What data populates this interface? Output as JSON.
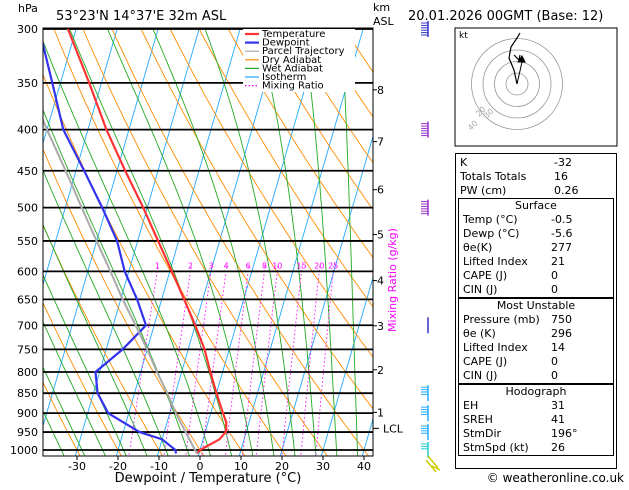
{
  "header": {
    "units_hpa": "hPa",
    "location": "53°23'N  14°37'E  32m  ASL",
    "units_km": "km",
    "units_asl": "ASL",
    "datetime": "20.01.2026  00GMT  (Base: 12)"
  },
  "chart_data": {
    "type": "skew-t log-p",
    "xlabel": "Dewpoint / Temperature (°C)",
    "ylabel_mixing": "Mixing Ratio (g/kg)",
    "pressure_levels": [
      300,
      350,
      400,
      450,
      500,
      550,
      600,
      650,
      700,
      750,
      800,
      850,
      900,
      950,
      1000
    ],
    "temperature_ticks": [
      -30,
      -20,
      -10,
      0,
      10,
      20,
      30,
      40
    ],
    "xlim": [
      -35,
      40
    ],
    "ylim": [
      1050,
      300
    ],
    "km_ticks": [
      {
        "label": "8",
        "p": 357
      },
      {
        "label": "7",
        "p": 414
      },
      {
        "label": "6",
        "p": 475
      },
      {
        "label": "5",
        "p": 540
      },
      {
        "label": "4",
        "p": 616
      },
      {
        "label": "3",
        "p": 701
      },
      {
        "label": "2",
        "p": 795
      },
      {
        "label": "1",
        "p": 898
      }
    ],
    "lcl": {
      "label": "LCL",
      "p": 940
    },
    "mixing_ratio_labels": [
      "1",
      "2",
      "3",
      "4",
      "6",
      "8",
      "10",
      "15",
      "20",
      "25"
    ],
    "mixing_ratio_values": [
      1,
      2,
      3,
      4,
      6,
      8,
      10,
      15,
      20,
      25
    ],
    "legend": [
      "Temperature",
      "Dewpoint",
      "Parcel Trajectory",
      "Dry Adiabat",
      "Wet Adiabat",
      "Isotherm",
      "Mixing Ratio"
    ],
    "series": [
      {
        "name": "Temperature",
        "color": "#ff3333",
        "points": [
          [
            1010,
            -0.5
          ],
          [
            1000,
            0
          ],
          [
            970,
            4
          ],
          [
            950,
            5
          ],
          [
            925,
            4.5
          ],
          [
            900,
            3
          ],
          [
            850,
            0
          ],
          [
            800,
            -3
          ],
          [
            750,
            -6
          ],
          [
            700,
            -10
          ],
          [
            650,
            -14.5
          ],
          [
            600,
            -19.5
          ],
          [
            550,
            -25
          ],
          [
            500,
            -31
          ],
          [
            450,
            -38
          ],
          [
            400,
            -45.5
          ],
          [
            350,
            -53
          ],
          [
            300,
            -62
          ]
        ]
      },
      {
        "name": "Dewpoint",
        "color": "#3333ee",
        "points": [
          [
            1010,
            -5.6
          ],
          [
            1000,
            -6
          ],
          [
            970,
            -10
          ],
          [
            950,
            -16
          ],
          [
            900,
            -25
          ],
          [
            850,
            -29
          ],
          [
            800,
            -31
          ],
          [
            750,
            -26
          ],
          [
            700,
            -22
          ],
          [
            650,
            -26
          ],
          [
            600,
            -31
          ],
          [
            550,
            -35
          ],
          [
            500,
            -41
          ],
          [
            450,
            -48
          ],
          [
            400,
            -56
          ],
          [
            350,
            -62
          ],
          [
            300,
            -69
          ]
        ]
      },
      {
        "name": "Parcel Trajectory",
        "color": "#aaaaaa",
        "points": [
          [
            1010,
            -0.5
          ],
          [
            940,
            -5.5
          ],
          [
            900,
            -8.5
          ],
          [
            850,
            -12
          ],
          [
            800,
            -16
          ],
          [
            750,
            -20
          ],
          [
            700,
            -24.5
          ],
          [
            650,
            -29.5
          ],
          [
            600,
            -34.5
          ],
          [
            550,
            -40
          ],
          [
            500,
            -46
          ],
          [
            450,
            -52.5
          ],
          [
            400,
            -60
          ],
          [
            350,
            -68
          ],
          [
            300,
            -76
          ]
        ]
      }
    ],
    "hodograph": {
      "rings_kt": [
        10,
        20,
        30,
        40
      ],
      "ring_labels": [
        "20",
        "30",
        "40"
      ],
      "unit": "kt"
    }
  },
  "indices": {
    "basic": [
      {
        "label": "K",
        "value": "-32"
      },
      {
        "label": "Totals Totals",
        "value": "16"
      },
      {
        "label": "PW (cm)",
        "value": "0.26"
      }
    ],
    "surface_title": "Surface",
    "surface": [
      {
        "label": "Temp (°C)",
        "value": "-0.5"
      },
      {
        "label": "Dewp (°C)",
        "value": "-5.6"
      },
      {
        "label": "θe(K)",
        "value": "277"
      },
      {
        "label": "Lifted Index",
        "value": "21"
      },
      {
        "label": "CAPE (J)",
        "value": "0"
      },
      {
        "label": "CIN (J)",
        "value": "0"
      }
    ],
    "unstable_title": "Most Unstable",
    "unstable": [
      {
        "label": "Pressure (mb)",
        "value": "750"
      },
      {
        "label": "θe (K)",
        "value": "296"
      },
      {
        "label": "Lifted Index",
        "value": "14"
      },
      {
        "label": "CAPE (J)",
        "value": "0"
      },
      {
        "label": "CIN (J)",
        "value": "0"
      }
    ],
    "hodo_title": "Hodograph",
    "hodo": [
      {
        "label": "EH",
        "value": "31"
      },
      {
        "label": "SREH",
        "value": "41"
      },
      {
        "label": "StmDir",
        "value": "196°"
      },
      {
        "label": "StmSpd (kt)",
        "value": "26"
      }
    ]
  },
  "footer": {
    "copyright": "© weatheronline.co.uk"
  },
  "colors": {
    "temperature": "#ff3333",
    "dewpoint": "#3333ee",
    "parcel": "#aaaaaa",
    "dry_adiabat": "#ff8c00",
    "wet_adiabat": "#22aa22",
    "isotherm": "#22aaff",
    "mixing_ratio": "#ff00ff"
  }
}
